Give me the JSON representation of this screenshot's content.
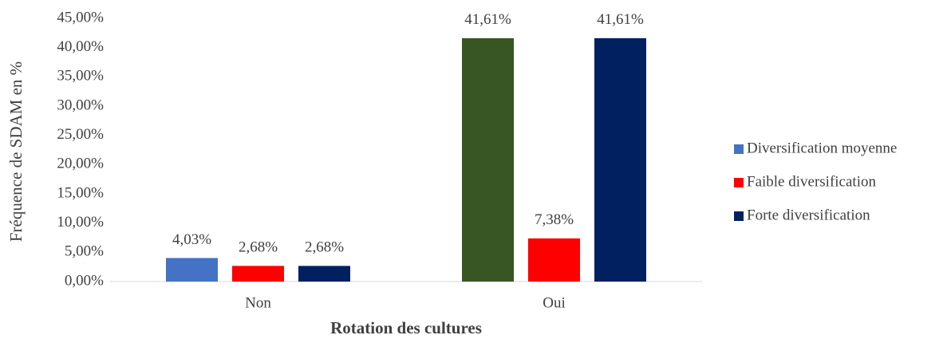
{
  "chart_data": {
    "type": "bar",
    "y_axis_label": "Fréquence de SDAM en %",
    "x_axis_label": "Rotation des cultures",
    "categories": [
      "Non",
      "Oui"
    ],
    "series": [
      {
        "name": "Diversification moyenne",
        "color": "#4472c4",
        "point_colors": [
          "#4472c4",
          "#375623"
        ],
        "values": [
          4.03,
          41.61
        ],
        "value_labels": [
          "4,03%",
          "41,61%"
        ]
      },
      {
        "name": "Faible diversification",
        "color": "#ff0000",
        "values": [
          2.68,
          7.38
        ],
        "value_labels": [
          "2,68%",
          "7,38%"
        ]
      },
      {
        "name": "Forte diversification",
        "color": "#002060",
        "values": [
          2.68,
          41.61
        ],
        "value_labels": [
          "2,68%",
          "41,61%"
        ]
      }
    ],
    "ylim": [
      0,
      45
    ],
    "yticks": [
      {
        "value": 0,
        "label": "0,00%"
      },
      {
        "value": 5,
        "label": "5,00%"
      },
      {
        "value": 10,
        "label": "10,00%"
      },
      {
        "value": 15,
        "label": "15,00%"
      },
      {
        "value": 20,
        "label": "20,00%"
      },
      {
        "value": 25,
        "label": "25,00%"
      },
      {
        "value": 30,
        "label": "30,00%"
      },
      {
        "value": 35,
        "label": "35,00%"
      },
      {
        "value": 40,
        "label": "40,00%"
      },
      {
        "value": 45,
        "label": "45,00%"
      }
    ],
    "grid": false,
    "legend": "right"
  }
}
